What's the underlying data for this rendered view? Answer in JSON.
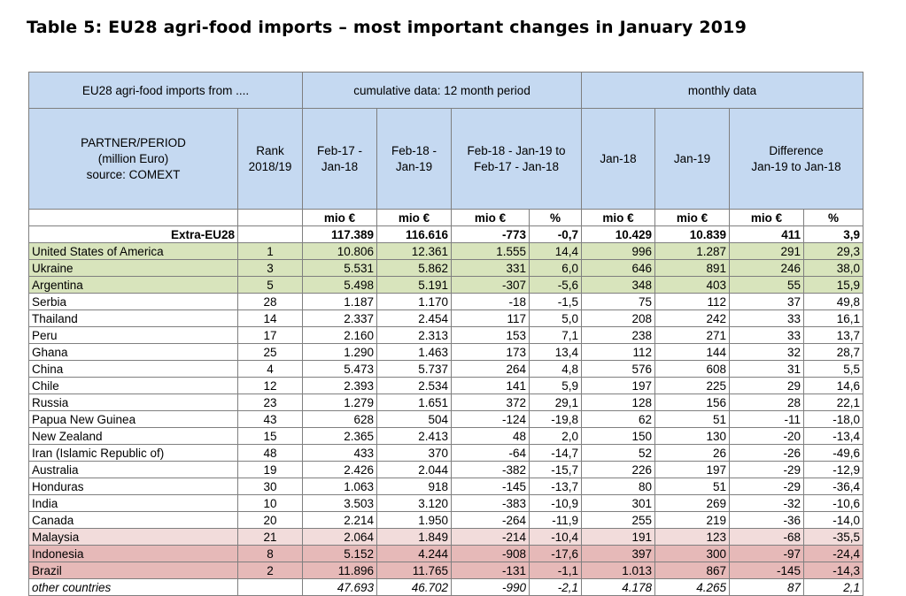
{
  "title": "Table 5: EU28 agri-food imports – most important changes in January 2019",
  "header": {
    "from": "EU28 agri-food imports from ....",
    "cumulative": "cumulative data: 12 month period",
    "monthly": "monthly data",
    "partner_line1": "PARTNER/PERIOD",
    "partner_line2": "(million Euro)",
    "partner_line3": "source: COMEXT",
    "rank_line1": "Rank",
    "rank_line2": "2018/19",
    "feb17_line1": "Feb-17 -",
    "feb17_line2": "Jan-18",
    "feb18_line1": "Feb-18 -",
    "feb18_line2": "Jan-19",
    "diffcum_line1": "Feb-18 - Jan-19 to",
    "diffcum_line2": "Feb-17 - Jan-18",
    "jan18": "Jan-18",
    "jan19": "Jan-19",
    "diff_line1": "Difference",
    "diff_line2": "Jan-19 to Jan-18",
    "unit_mio": "mio €",
    "unit_pct": "%"
  },
  "extra": {
    "label": "Extra-EU28",
    "values": [
      "117.389",
      "116.616",
      "-773",
      "-0,7",
      "10.429",
      "10.839",
      "411",
      "3,9"
    ]
  },
  "rows": [
    {
      "name": "United States of America",
      "rank": "1",
      "v": [
        "10.806",
        "12.361",
        "1.555",
        "14,4",
        "996",
        "1.287",
        "291",
        "29,3"
      ]
    },
    {
      "name": "Ukraine",
      "rank": "3",
      "v": [
        "5.531",
        "5.862",
        "331",
        "6,0",
        "646",
        "891",
        "246",
        "38,0"
      ]
    },
    {
      "name": "Argentina",
      "rank": "5",
      "v": [
        "5.498",
        "5.191",
        "-307",
        "-5,6",
        "348",
        "403",
        "55",
        "15,9"
      ]
    },
    {
      "name": "Serbia",
      "rank": "28",
      "v": [
        "1.187",
        "1.170",
        "-18",
        "-1,5",
        "75",
        "112",
        "37",
        "49,8"
      ]
    },
    {
      "name": "Thailand",
      "rank": "14",
      "v": [
        "2.337",
        "2.454",
        "117",
        "5,0",
        "208",
        "242",
        "33",
        "16,1"
      ]
    },
    {
      "name": "Peru",
      "rank": "17",
      "v": [
        "2.160",
        "2.313",
        "153",
        "7,1",
        "238",
        "271",
        "33",
        "13,7"
      ]
    },
    {
      "name": "Ghana",
      "rank": "25",
      "v": [
        "1.290",
        "1.463",
        "173",
        "13,4",
        "112",
        "144",
        "32",
        "28,7"
      ]
    },
    {
      "name": "China",
      "rank": "4",
      "v": [
        "5.473",
        "5.737",
        "264",
        "4,8",
        "576",
        "608",
        "31",
        "5,5"
      ]
    },
    {
      "name": "Chile",
      "rank": "12",
      "v": [
        "2.393",
        "2.534",
        "141",
        "5,9",
        "197",
        "225",
        "29",
        "14,6"
      ]
    },
    {
      "name": "Russia",
      "rank": "23",
      "v": [
        "1.279",
        "1.651",
        "372",
        "29,1",
        "128",
        "156",
        "28",
        "22,1"
      ]
    },
    {
      "name": "Papua New Guinea",
      "rank": "43",
      "v": [
        "628",
        "504",
        "-124",
        "-19,8",
        "62",
        "51",
        "-11",
        "-18,0"
      ]
    },
    {
      "name": "New Zealand",
      "rank": "15",
      "v": [
        "2.365",
        "2.413",
        "48",
        "2,0",
        "150",
        "130",
        "-20",
        "-13,4"
      ]
    },
    {
      "name": "Iran (Islamic Republic of)",
      "rank": "48",
      "v": [
        "433",
        "370",
        "-64",
        "-14,7",
        "52",
        "26",
        "-26",
        "-49,6"
      ]
    },
    {
      "name": "Australia",
      "rank": "19",
      "v": [
        "2.426",
        "2.044",
        "-382",
        "-15,7",
        "226",
        "197",
        "-29",
        "-12,9"
      ]
    },
    {
      "name": "Honduras",
      "rank": "30",
      "v": [
        "1.063",
        "918",
        "-145",
        "-13,7",
        "80",
        "51",
        "-29",
        "-36,4"
      ]
    },
    {
      "name": "India",
      "rank": "10",
      "v": [
        "3.503",
        "3.120",
        "-383",
        "-10,9",
        "301",
        "269",
        "-32",
        "-10,6"
      ]
    },
    {
      "name": "Canada",
      "rank": "20",
      "v": [
        "2.214",
        "1.950",
        "-264",
        "-11,9",
        "255",
        "219",
        "-36",
        "-14,0"
      ]
    },
    {
      "name": "Malaysia",
      "rank": "21",
      "v": [
        "2.064",
        "1.849",
        "-214",
        "-10,4",
        "191",
        "123",
        "-68",
        "-35,5"
      ]
    },
    {
      "name": "Indonesia",
      "rank": "8",
      "v": [
        "5.152",
        "4.244",
        "-908",
        "-17,6",
        "397",
        "300",
        "-97",
        "-24,4"
      ]
    },
    {
      "name": "Brazil",
      "rank": "2",
      "v": [
        "11.896",
        "11.765",
        "-131",
        "-1,1",
        "1.013",
        "867",
        "-145",
        "-14,3"
      ]
    }
  ],
  "other": {
    "label": "other countries",
    "values": [
      "47.693",
      "46.702",
      "-990",
      "-2,1",
      "4.178",
      "4.265",
      "87",
      "2,1"
    ]
  },
  "row_colors": {
    "green": "#d8e4bc",
    "pink": "#f2dcdb",
    "rose": "#e6b9b8",
    "header": "#c5d9f1"
  }
}
